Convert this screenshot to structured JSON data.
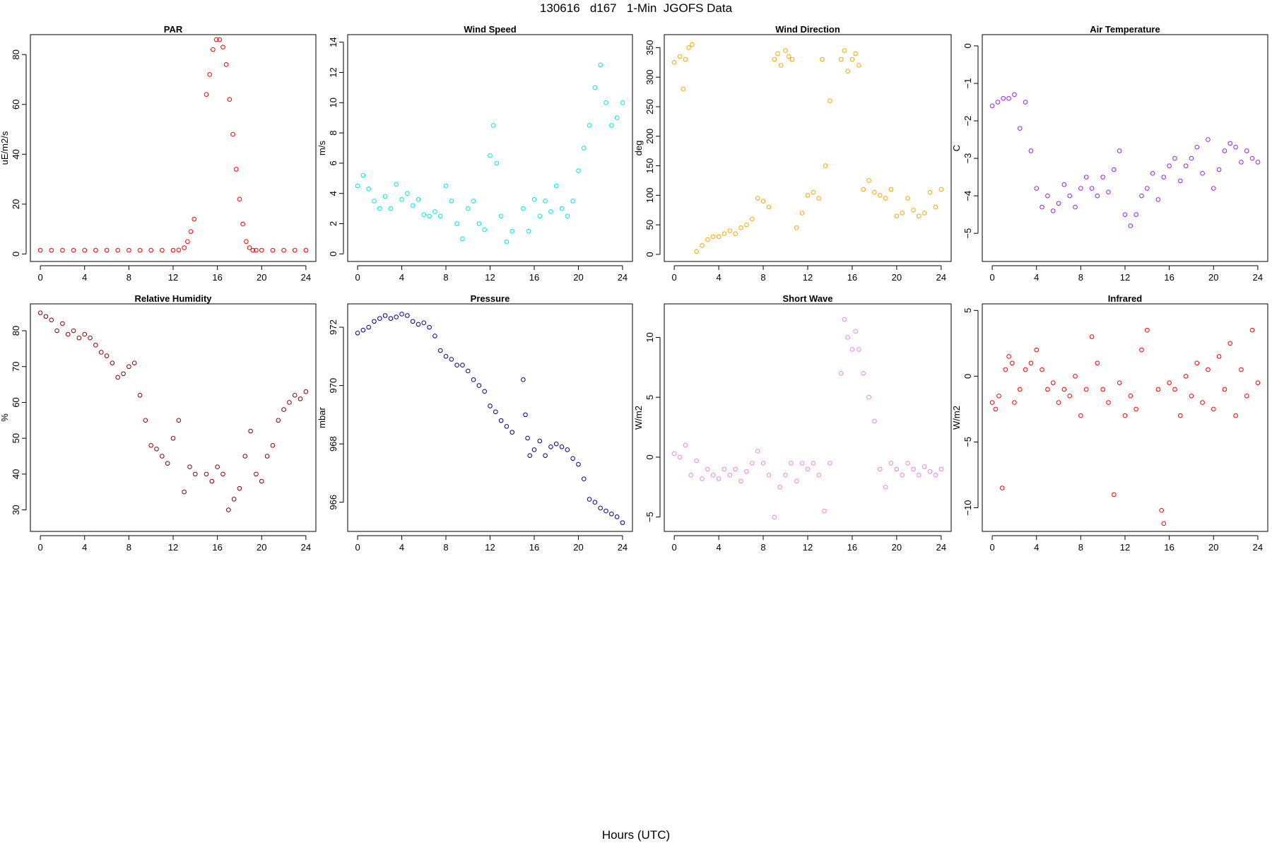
{
  "figure": {
    "title": "130616   d167   1-Min  JGOFS Data",
    "xlabel": "Hours (UTC)"
  },
  "chart_data": [
    {
      "type": "scatter",
      "title": "PAR",
      "ylabel": "uE/m2/s",
      "color": "#ff0000",
      "xlim": [
        -0.9,
        24.9
      ],
      "ylim": [
        -3,
        88
      ],
      "xticks": [
        0,
        4,
        8,
        12,
        16,
        20,
        24
      ],
      "yticks": [
        0,
        20,
        40,
        60,
        80
      ],
      "series": [
        {
          "x": [
            0,
            1,
            2,
            3,
            4,
            5,
            6,
            7,
            8,
            9,
            10,
            11,
            12,
            12.5,
            13,
            13.3,
            13.6,
            13.9,
            15,
            15.3,
            15.6,
            15.9,
            16.2,
            16.5,
            16.8,
            17.1,
            17.4,
            17.7,
            18,
            18.3,
            18.6,
            18.9,
            19.2,
            19.5,
            20,
            21,
            22,
            23,
            24
          ],
          "y": [
            1.5,
            1.5,
            1.5,
            1.5,
            1.5,
            1.5,
            1.5,
            1.5,
            1.5,
            1.5,
            1.5,
            1.5,
            1.5,
            1.6,
            2.5,
            5,
            9,
            14,
            64,
            72,
            82,
            86,
            86,
            83,
            76,
            62,
            48,
            34,
            22,
            12,
            5,
            2.5,
            1.5,
            1.5,
            1.5,
            1.5,
            1.5,
            1.5,
            1.5
          ]
        }
      ]
    },
    {
      "type": "scatter",
      "title": "Wind Speed",
      "ylabel": "m/s",
      "color": "#00e5ee",
      "xlim": [
        -0.9,
        24.9
      ],
      "ylim": [
        -0.5,
        14.5
      ],
      "xticks": [
        0,
        4,
        8,
        12,
        16,
        20,
        24
      ],
      "yticks": [
        0,
        2,
        4,
        6,
        8,
        10,
        12,
        14
      ],
      "series": [
        {
          "x": [
            0,
            0.5,
            1,
            1.5,
            2,
            2.5,
            3,
            3.5,
            4,
            4.5,
            5,
            5.5,
            6,
            6.5,
            7,
            7.5,
            8,
            8.5,
            9,
            9.5,
            10,
            10.5,
            11,
            11.5,
            12,
            12.3,
            12.6,
            13,
            13.5,
            14,
            15,
            15.5,
            16,
            16.5,
            17,
            17.5,
            18,
            18.5,
            19,
            19.5,
            20,
            20.5,
            21,
            21.5,
            22,
            22.5,
            23,
            23.5,
            24
          ],
          "y": [
            4.5,
            5.2,
            4.3,
            3.5,
            3,
            3.8,
            3,
            4.6,
            3.6,
            4,
            3.2,
            3.6,
            2.6,
            2.5,
            2.8,
            2.5,
            4.5,
            3.5,
            2,
            1,
            3,
            3.5,
            2,
            1.6,
            6.5,
            8.5,
            6,
            2.5,
            0.8,
            1.5,
            3,
            1.5,
            3.6,
            2.5,
            3.5,
            2.8,
            4.5,
            3,
            2.5,
            3.5,
            5.5,
            7,
            8.5,
            11,
            12.5,
            10,
            8.5,
            9,
            10
          ]
        }
      ]
    },
    {
      "type": "scatter",
      "title": "Wind Direction",
      "ylabel": "deg",
      "color": "#ffa500",
      "xlim": [
        -0.9,
        24.9
      ],
      "ylim": [
        -12,
        372
      ],
      "xticks": [
        0,
        4,
        8,
        12,
        16,
        20,
        24
      ],
      "yticks": [
        0,
        50,
        100,
        150,
        200,
        250,
        300,
        350
      ],
      "series": [
        {
          "x": [
            0,
            0.5,
            0.8,
            1,
            1.3,
            1.6,
            2,
            2.5,
            3,
            3.5,
            4,
            4.5,
            5,
            5.5,
            6,
            6.5,
            7,
            7.5,
            8,
            8.5,
            9,
            9.3,
            9.6,
            10,
            10.3,
            10.6,
            11,
            11.5,
            12,
            12.5,
            13,
            13.3,
            13.6,
            14,
            15,
            15.3,
            15.6,
            16,
            16.3,
            16.6,
            17,
            17.5,
            18,
            18.5,
            19,
            19.5,
            20,
            20.5,
            21,
            21.5,
            22,
            22.5,
            23,
            23.5,
            24
          ],
          "y": [
            325,
            335,
            280,
            330,
            350,
            355,
            5,
            15,
            25,
            30,
            30,
            35,
            40,
            35,
            45,
            50,
            60,
            95,
            90,
            80,
            330,
            340,
            320,
            345,
            335,
            330,
            45,
            70,
            100,
            105,
            95,
            330,
            150,
            260,
            330,
            345,
            310,
            330,
            340,
            320,
            110,
            125,
            105,
            100,
            95,
            110,
            65,
            70,
            95,
            75,
            65,
            70,
            105,
            80,
            110
          ]
        }
      ]
    },
    {
      "type": "scatter",
      "title": "Air Temperature",
      "ylabel": "C",
      "color": "#a020f0",
      "xlim": [
        -0.9,
        24.9
      ],
      "ylim": [
        -5.75,
        0.3
      ],
      "xticks": [
        0,
        4,
        8,
        12,
        16,
        20,
        24
      ],
      "yticks": [
        0,
        -1,
        -2,
        -3,
        -4,
        -5
      ],
      "series": [
        {
          "x": [
            0,
            0.5,
            1,
            1.5,
            2,
            2.5,
            3,
            3.5,
            4,
            4.5,
            5,
            5.5,
            6,
            6.5,
            7,
            7.5,
            8,
            8.5,
            9,
            9.5,
            10,
            10.5,
            11,
            11.5,
            12,
            12.5,
            13,
            13.5,
            14,
            14.5,
            15,
            15.5,
            16,
            16.5,
            17,
            17.5,
            18,
            18.5,
            19,
            19.5,
            20,
            20.5,
            21,
            21.5,
            22,
            22.5,
            23,
            23.5,
            24
          ],
          "y": [
            -1.6,
            -1.5,
            -1.4,
            -1.4,
            -1.3,
            -2.2,
            -1.5,
            -2.8,
            -3.8,
            -4.3,
            -4,
            -4.4,
            -4.2,
            -3.7,
            -4,
            -4.3,
            -3.8,
            -3.5,
            -3.8,
            -4,
            -3.5,
            -3.9,
            -3.3,
            -2.8,
            -4.5,
            -4.8,
            -4.5,
            -4,
            -3.8,
            -3.4,
            -4.1,
            -3.5,
            -3.2,
            -3,
            -3.6,
            -3.2,
            -3,
            -2.7,
            -3.4,
            -2.5,
            -3.8,
            -3.3,
            -2.8,
            -2.6,
            -2.7,
            -3.1,
            -2.8,
            -3,
            -3.1
          ]
        }
      ]
    },
    {
      "type": "scatter",
      "title": "Relative Humidity",
      "ylabel": "%",
      "color": "#8b0000",
      "xlim": [
        -0.9,
        24.9
      ],
      "ylim": [
        24,
        87.5
      ],
      "xticks": [
        0,
        4,
        8,
        12,
        16,
        20,
        24
      ],
      "yticks": [
        30,
        40,
        50,
        60,
        70,
        80
      ],
      "series": [
        {
          "x": [
            0,
            0.5,
            1,
            1.5,
            2,
            2.5,
            3,
            3.5,
            4,
            4.5,
            5,
            5.5,
            6,
            6.5,
            7,
            7.5,
            8,
            8.5,
            9,
            9.5,
            10,
            10.5,
            11,
            11.5,
            12,
            12.5,
            13,
            13.5,
            14,
            15,
            15.5,
            16,
            16.5,
            17,
            17.5,
            18,
            18.5,
            19,
            19.5,
            20,
            20.5,
            21,
            21.5,
            22,
            22.5,
            23,
            23.5,
            24
          ],
          "y": [
            85,
            84,
            83,
            80,
            82,
            79,
            80,
            78,
            79,
            78,
            76,
            74,
            73,
            71,
            67,
            68,
            70,
            71,
            62,
            55,
            48,
            47,
            45,
            43,
            50,
            55,
            35,
            42,
            40,
            40,
            38,
            42,
            40,
            30,
            33,
            36,
            45,
            52,
            40,
            38,
            45,
            48,
            55,
            58,
            60,
            62,
            61,
            63
          ]
        }
      ]
    },
    {
      "type": "scatter",
      "title": "Pressure",
      "ylabel": "mbar",
      "color": "#00008b",
      "xlim": [
        -0.9,
        24.9
      ],
      "ylim": [
        965,
        972.8
      ],
      "xticks": [
        0,
        4,
        8,
        12,
        16,
        20,
        24
      ],
      "yticks": [
        966,
        968,
        970,
        972
      ],
      "series": [
        {
          "x": [
            0,
            0.5,
            1,
            1.5,
            2,
            2.5,
            3,
            3.5,
            4,
            4.5,
            5,
            5.5,
            6,
            6.5,
            7,
            7.5,
            8,
            8.5,
            9,
            9.5,
            10,
            10.5,
            11,
            11.5,
            12,
            12.5,
            13,
            13.5,
            14,
            15,
            15.2,
            15.4,
            15.6,
            16,
            16.5,
            17,
            17.5,
            18,
            18.5,
            19,
            19.5,
            20,
            20.5,
            21,
            21.5,
            22,
            22.5,
            23,
            23.5,
            24
          ],
          "y": [
            971.8,
            971.9,
            972,
            972.2,
            972.3,
            972.4,
            972.3,
            972.35,
            972.45,
            972.4,
            972.2,
            972.1,
            972.15,
            972,
            971.7,
            971.2,
            971,
            970.9,
            970.7,
            970.7,
            970.5,
            970.2,
            970,
            969.8,
            969.3,
            969.1,
            968.8,
            968.6,
            968.4,
            970.2,
            969,
            968.2,
            967.6,
            967.8,
            968.1,
            967.6,
            967.9,
            968,
            967.9,
            967.8,
            967.5,
            967.3,
            966.8,
            966.1,
            966,
            965.8,
            965.7,
            965.6,
            965.5,
            965.3
          ]
        }
      ]
    },
    {
      "type": "scatter",
      "title": "Short Wave",
      "ylabel": "W/m2",
      "color": "#ee82ee",
      "xlim": [
        -0.9,
        24.9
      ],
      "ylim": [
        -6.2,
        12.8
      ],
      "xticks": [
        0,
        4,
        8,
        12,
        16,
        20,
        24
      ],
      "yticks": [
        -5,
        0,
        5,
        10
      ],
      "series": [
        {
          "x": [
            0,
            0.5,
            1,
            1.5,
            2,
            2.5,
            3,
            3.5,
            4,
            4.5,
            5,
            5.5,
            6,
            6.5,
            7,
            7.5,
            8,
            8.5,
            9,
            9.5,
            10,
            10.5,
            11,
            11.5,
            12,
            12.5,
            13,
            13.5,
            14,
            15,
            15.3,
            15.6,
            16,
            16.3,
            16.6,
            17,
            17.5,
            18,
            18.5,
            19,
            19.5,
            20,
            20.5,
            21,
            21.5,
            22,
            22.5,
            23,
            23.5,
            24
          ],
          "y": [
            0.3,
            0,
            1,
            -1.5,
            -0.3,
            -1.8,
            -1,
            -1.5,
            -1.8,
            -1,
            -1.5,
            -1,
            -2,
            -1.2,
            -0.5,
            0.5,
            -0.5,
            -1.5,
            -5,
            -2.5,
            -1.5,
            -0.5,
            -2,
            -0.5,
            -1,
            -0.5,
            -1.5,
            -4.5,
            -0.5,
            7,
            11.5,
            10,
            9,
            10.5,
            9,
            7,
            5,
            3,
            -1,
            -2.5,
            -0.5,
            -1,
            -1.5,
            -0.5,
            -1,
            -1.5,
            -0.8,
            -1.2,
            -1.5,
            -1
          ]
        }
      ]
    },
    {
      "type": "scatter",
      "title": "Infrared",
      "ylabel": "W/m2",
      "color": "#ff0000",
      "xlim": [
        -0.9,
        24.9
      ],
      "ylim": [
        -11.8,
        5.5
      ],
      "xticks": [
        0,
        4,
        8,
        12,
        16,
        20,
        24
      ],
      "yticks": [
        -10,
        -5,
        0,
        5
      ],
      "series": [
        {
          "x": [
            0,
            0.3,
            0.6,
            0.9,
            1.2,
            1.5,
            1.8,
            2,
            2.5,
            3,
            3.5,
            4,
            4.5,
            5,
            5.5,
            6,
            6.5,
            7,
            7.5,
            8,
            8.5,
            9,
            9.5,
            10,
            10.5,
            11,
            11.5,
            12,
            12.5,
            13,
            13.5,
            14,
            15,
            15.3,
            15.5,
            16,
            16.5,
            17,
            17.5,
            18,
            18.5,
            19,
            19.5,
            20,
            20.5,
            21,
            21.5,
            22,
            22.5,
            23,
            23.5,
            24
          ],
          "y": [
            -2,
            -2.5,
            -1.5,
            -8.5,
            0.5,
            1.5,
            1,
            -2,
            -1,
            0.5,
            1,
            2,
            0.5,
            -1,
            -0.5,
            -2,
            -1,
            -1.5,
            0,
            -3,
            -1,
            3,
            1,
            -1,
            -2,
            -9,
            -0.5,
            -3,
            -1.5,
            -2.5,
            2,
            3.5,
            -1,
            -10.2,
            -11.2,
            -0.5,
            -1,
            -3,
            0,
            -1.5,
            1,
            -2,
            0.5,
            -2.5,
            1.5,
            -1,
            2.5,
            -3,
            0.5,
            -1.5,
            3.5,
            -0.5
          ]
        }
      ]
    }
  ]
}
